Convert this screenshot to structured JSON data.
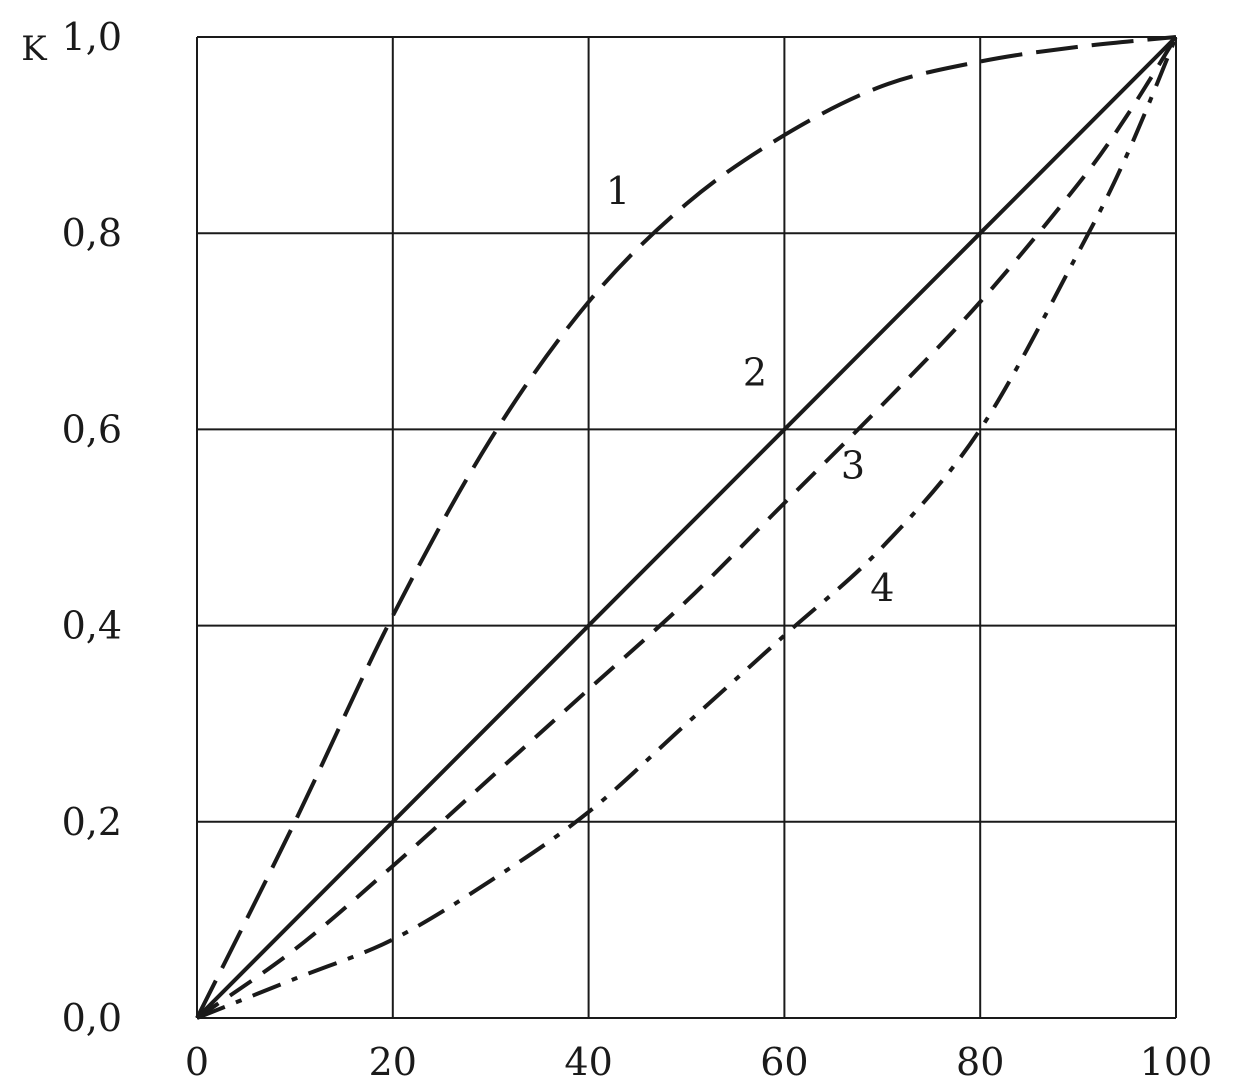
{
  "chart_data": {
    "type": "line",
    "ylabel": "K",
    "xlim": [
      0,
      100
    ],
    "ylim": [
      0,
      1
    ],
    "grid": true,
    "x_ticks": [
      0,
      20,
      40,
      60,
      80,
      100
    ],
    "y_ticks": [
      0,
      0.2,
      0.4,
      0.6,
      0.8,
      1.0
    ],
    "x_tick_labels": [
      "0",
      "20",
      "40",
      "60",
      "80",
      "100"
    ],
    "y_tick_labels": [
      "0,0",
      "0,2",
      "0,4",
      "0,6",
      "0,8",
      "1,0"
    ],
    "line_color": "#1a1a1a",
    "grid_color": "#1a1a1a",
    "series": [
      {
        "name": "1",
        "line_style": "long-dash",
        "x": [
          0,
          10,
          20,
          30,
          40,
          50,
          60,
          70,
          80,
          90,
          100
        ],
        "y": [
          0,
          0.2,
          0.41,
          0.59,
          0.73,
          0.83,
          0.9,
          0.95,
          0.975,
          0.99,
          1.0
        ]
      },
      {
        "name": "2",
        "line_style": "solid",
        "x": [
          0,
          20,
          40,
          60,
          80,
          100
        ],
        "y": [
          0,
          0.2,
          0.4,
          0.6,
          0.8,
          1.0
        ]
      },
      {
        "name": "3",
        "line_style": "dash",
        "x": [
          0,
          10,
          20,
          30,
          40,
          50,
          60,
          70,
          80,
          90,
          95,
          100
        ],
        "y": [
          0,
          0.07,
          0.155,
          0.245,
          0.335,
          0.425,
          0.525,
          0.625,
          0.73,
          0.85,
          0.92,
          1.0
        ]
      },
      {
        "name": "4",
        "line_style": "dash-dot",
        "x": [
          0,
          10,
          20,
          30,
          40,
          50,
          60,
          70,
          80,
          90,
          95,
          100
        ],
        "y": [
          0,
          0.04,
          0.08,
          0.14,
          0.21,
          0.3,
          0.39,
          0.48,
          0.6,
          0.78,
          0.88,
          1.0
        ]
      }
    ],
    "annotations": [
      {
        "text": "1",
        "series": "1",
        "x": 43,
        "y": 0.83
      },
      {
        "text": "2",
        "series": "2",
        "x": 57,
        "y": 0.645
      },
      {
        "text": "3",
        "series": "3",
        "x": 67,
        "y": 0.55
      },
      {
        "text": "4",
        "series": "4",
        "x": 70,
        "y": 0.425
      }
    ]
  }
}
